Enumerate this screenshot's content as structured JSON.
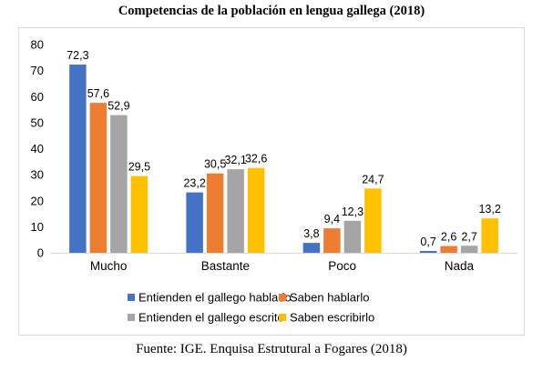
{
  "title": "Competencias de la población en lengua gallega (2018)",
  "source": "Fuente: IGE. Enquisa Estrutural a Fogares (2018)",
  "chart_data": {
    "type": "bar",
    "title": "Competencias de la población en lengua gallega (2018)",
    "categories": [
      "Mucho",
      "Bastante",
      "Poco",
      "Nada"
    ],
    "series": [
      {
        "name": "Entienden el gallego hablado",
        "color": "#4472c4",
        "values": [
          72.3,
          23.2,
          3.8,
          0.7
        ],
        "labels": [
          "72,3",
          "23,2",
          "3,8",
          "0,7"
        ]
      },
      {
        "name": "Saben hablarlo",
        "color": "#ed7d31",
        "values": [
          57.6,
          30.5,
          9.4,
          2.6
        ],
        "labels": [
          "57,6",
          "30,5",
          "9,4",
          "2,6"
        ]
      },
      {
        "name": "Entienden el gallego escrito",
        "color": "#a5a5a5",
        "values": [
          52.9,
          32.1,
          12.3,
          2.7
        ],
        "labels": [
          "52,9",
          "32,1",
          "12,3",
          "2,7"
        ]
      },
      {
        "name": "Saben escribirlo",
        "color": "#ffc000",
        "values": [
          29.5,
          32.6,
          24.7,
          13.2
        ],
        "labels": [
          "29,5",
          "32,6",
          "24,7",
          "13,2"
        ]
      }
    ],
    "yticks": [
      "0",
      "10",
      "20",
      "30",
      "40",
      "50",
      "60",
      "70",
      "80"
    ],
    "ylim": [
      0,
      80
    ],
    "grid": false,
    "legend_position": "bottom"
  }
}
